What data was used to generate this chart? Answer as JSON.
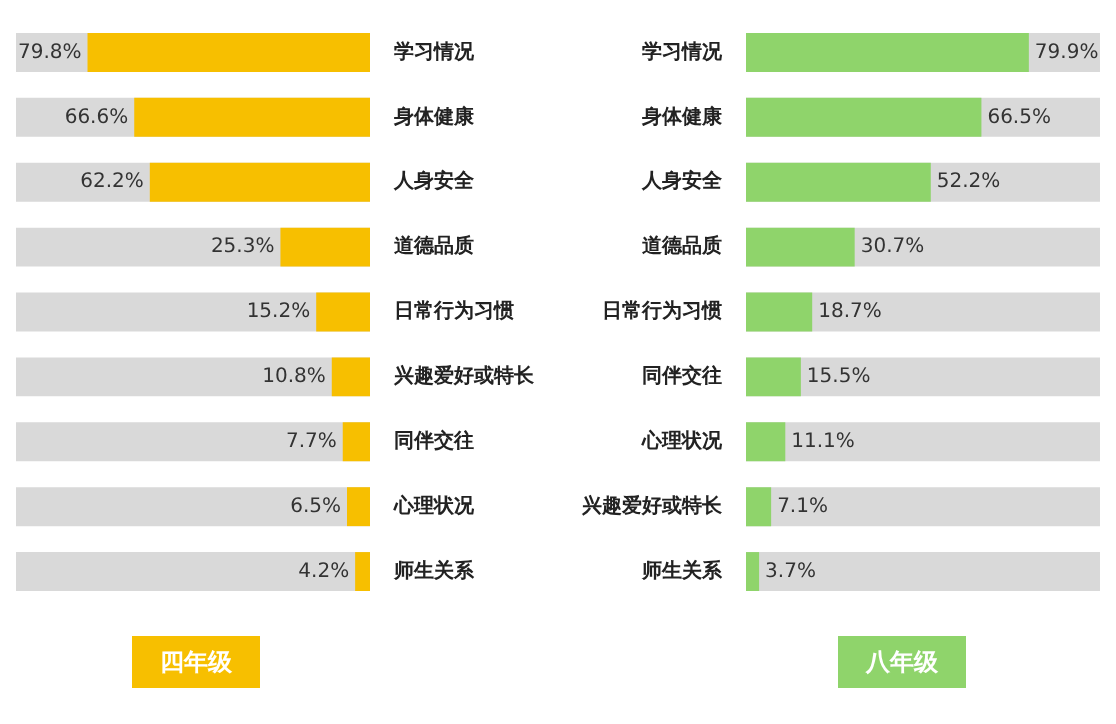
{
  "chart_data": [
    {
      "type": "bar",
      "title": "四年级",
      "orientation": "horizontal",
      "categories": [
        "学习情况",
        "身体健康",
        "人身安全",
        "道德品质",
        "日常行为习惯",
        "兴趣爱好或特长",
        "同伴交往",
        "心理状况",
        "师生关系"
      ],
      "values": [
        79.8,
        66.6,
        62.2,
        25.3,
        15.2,
        10.8,
        7.7,
        6.5,
        4.2
      ],
      "value_labels": [
        "79.8%",
        "66.6%",
        "62.2%",
        "25.3%",
        "15.2%",
        "10.8%",
        "7.7%",
        "6.5%",
        "4.2%"
      ],
      "color": "#f7bf00",
      "xlim": [
        100,
        0
      ],
      "tick_labels": "y"
    },
    {
      "type": "bar",
      "title": "八年级",
      "orientation": "horizontal",
      "categories": [
        "学习情况",
        "身体健康",
        "人身安全",
        "道德品质",
        "日常行为习惯",
        "同伴交往",
        "心理状况",
        "兴趣爱好或特长",
        "师生关系"
      ],
      "values": [
        79.9,
        66.5,
        52.2,
        30.7,
        18.7,
        15.5,
        11.1,
        7.1,
        3.7
      ],
      "value_labels": [
        "79.9%",
        "66.5%",
        "52.2%",
        "30.7%",
        "18.7%",
        "15.5%",
        "11.1%",
        "7.1%",
        "3.7%"
      ],
      "color": "#8fd46b",
      "xlim": [
        0,
        100
      ],
      "tick_labels": "y"
    }
  ]
}
